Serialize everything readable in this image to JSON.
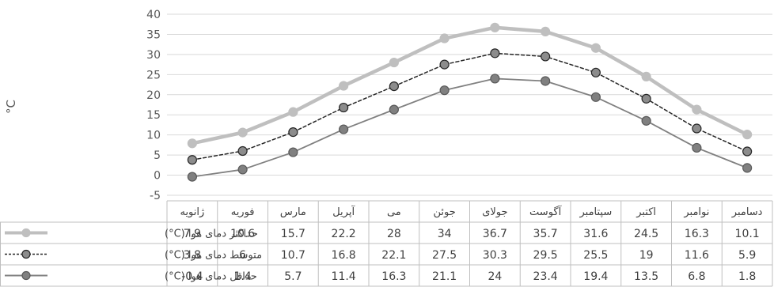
{
  "chart_data": {
    "type": "line",
    "ylabel": "°C",
    "ylim": [
      -5,
      40
    ],
    "yticks": [
      -5,
      0,
      5,
      10,
      15,
      20,
      25,
      30,
      35,
      40
    ],
    "grid": true,
    "legend": "data-table-left",
    "categories": [
      "ژانویه",
      "فوریه",
      "مارس",
      "آپریل",
      "می",
      "جوئن",
      "جولای",
      "آگوست",
      "سپتامبر",
      "اکتبر",
      "نوامبر",
      "دسامبر"
    ],
    "series": [
      {
        "name": "حداکثر دمای هوا (C°)",
        "color": "#BFBFBF",
        "style": "solid-thick",
        "values": [
          7.9,
          10.6,
          15.7,
          22.2,
          28,
          34,
          36.7,
          35.7,
          31.6,
          24.5,
          16.3,
          10.1
        ]
      },
      {
        "name": "متوسط دمای هوا (C°)",
        "color": "#262626",
        "style": "dashed",
        "values": [
          3.8,
          6,
          10.7,
          16.8,
          22.1,
          27.5,
          30.3,
          29.5,
          25.5,
          19,
          11.6,
          5.9
        ]
      },
      {
        "name": "حداقل دمای هوا (C°)",
        "color": "#808080",
        "style": "solid",
        "values": [
          -0.4,
          1.4,
          5.7,
          11.4,
          16.3,
          21.1,
          24,
          23.4,
          19.4,
          13.5,
          6.8,
          1.8
        ]
      }
    ]
  }
}
